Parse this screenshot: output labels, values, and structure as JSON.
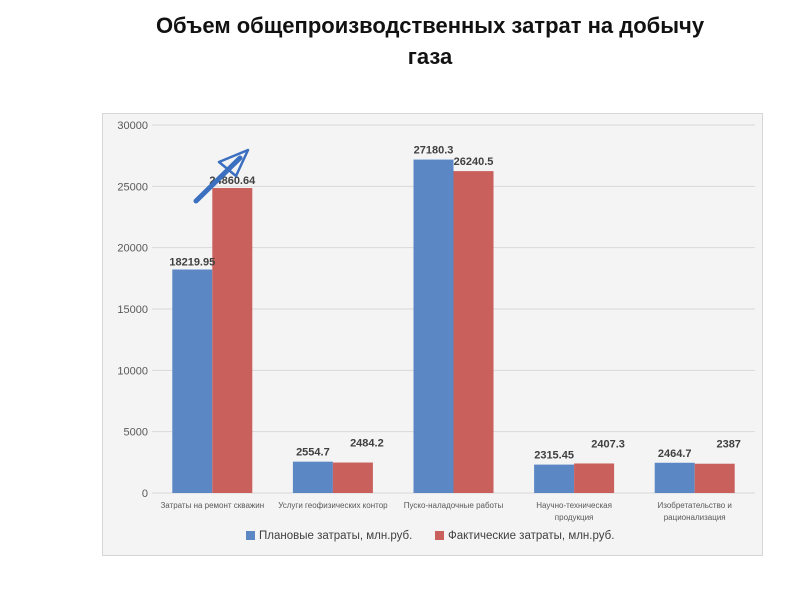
{
  "slide": {
    "title_line1": "Объем общепроизводственных затрат на добычу",
    "title_line2": "газа"
  },
  "chart_data": {
    "type": "bar",
    "title": "",
    "xlabel": "",
    "ylabel": "",
    "ylim": [
      0,
      30000
    ],
    "yticks": [
      0,
      5000,
      10000,
      15000,
      20000,
      25000,
      30000
    ],
    "grid": true,
    "legend_position": "bottom",
    "categories": [
      [
        "Затраты на ремонт скважин"
      ],
      [
        "Услуги геофизических контор"
      ],
      [
        "Пуско-наладочные работы"
      ],
      [
        "Научно-техническая",
        "продукция"
      ],
      [
        "Изобретательство и",
        "рационализация"
      ]
    ],
    "series": [
      {
        "name": "Плановые затраты, млн.руб.",
        "color": "#5b87c5",
        "values": [
          18219.95,
          2554.7,
          27180.3,
          2315.45,
          2464.7
        ],
        "labels": [
          "18219.95",
          "2554.7",
          "27180.3",
          "2315.45",
          "2464.7"
        ]
      },
      {
        "name": "Фактические затраты, млн.руб.",
        "color": "#c9605c",
        "values": [
          24860.64,
          2484.2,
          26240.5,
          2407.3,
          2387
        ],
        "labels": [
          "24860.64",
          "2484.2",
          "26240.5",
          "2407.3",
          "2387"
        ]
      }
    ],
    "annotation": {
      "type": "arrow",
      "color": "#3b6fc0",
      "direction": "up-right"
    }
  }
}
